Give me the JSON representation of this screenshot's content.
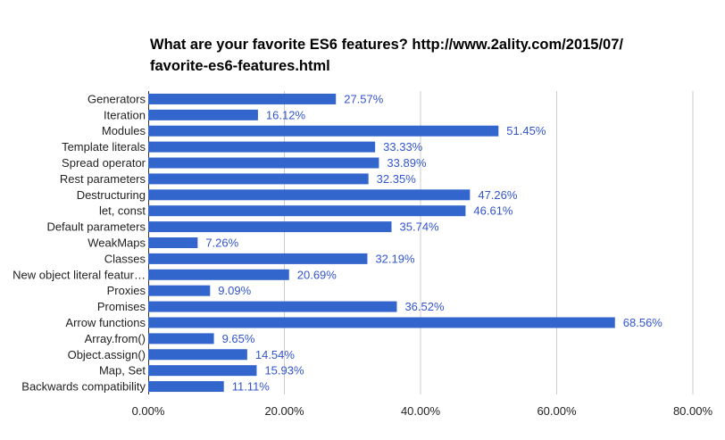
{
  "chart_data": {
    "type": "bar",
    "orientation": "horizontal",
    "title_lines": [
      "What are your favorite ES6 features? http://www.2ality.com/2015/07/",
      "favorite-es6-features.html"
    ],
    "categories": [
      "Generators",
      "Iteration",
      "Modules",
      "Template literals",
      "Spread operator",
      "Rest parameters",
      "Destructuring",
      "let, const",
      "Default parameters",
      "WeakMaps",
      "Classes",
      "New object literal featur…",
      "Proxies",
      "Promises",
      "Arrow functions",
      "Array.from()",
      "Object.assign()",
      "Map, Set",
      "Backwards compatibility"
    ],
    "values": [
      27.57,
      16.12,
      51.45,
      33.33,
      33.89,
      32.35,
      47.26,
      46.61,
      35.74,
      7.26,
      32.19,
      20.69,
      9.09,
      36.52,
      68.56,
      9.65,
      14.54,
      15.93,
      11.11
    ],
    "value_labels": [
      "27.57%",
      "16.12%",
      "51.45%",
      "33.33%",
      "33.89%",
      "32.35%",
      "47.26%",
      "46.61%",
      "35.74%",
      "7.26%",
      "32.19%",
      "20.69%",
      "9.09%",
      "36.52%",
      "68.56%",
      "9.65%",
      "14.54%",
      "15.93%",
      "11.11%"
    ],
    "x_ticks": [
      "0.00%",
      "20.00%",
      "40.00%",
      "60.00%",
      "80.00%"
    ],
    "xlim": [
      0,
      80
    ],
    "xlabel": "",
    "ylabel": "",
    "grid": true,
    "legend": "none",
    "bar_color": "#3366cc",
    "label_color": "#3355cc",
    "grid_color": "#cccccc"
  }
}
